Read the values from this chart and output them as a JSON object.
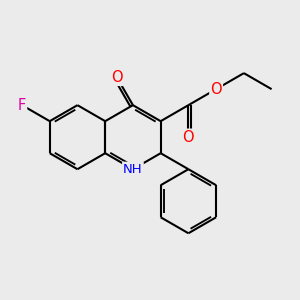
{
  "background_color": "#ebebeb",
  "bond_color": "#000000",
  "bond_width": 1.5,
  "atom_colors": {
    "F": "#e000a0",
    "O": "#ff0000",
    "N": "#0000ff",
    "C": "#000000"
  },
  "font_size": 9.5
}
